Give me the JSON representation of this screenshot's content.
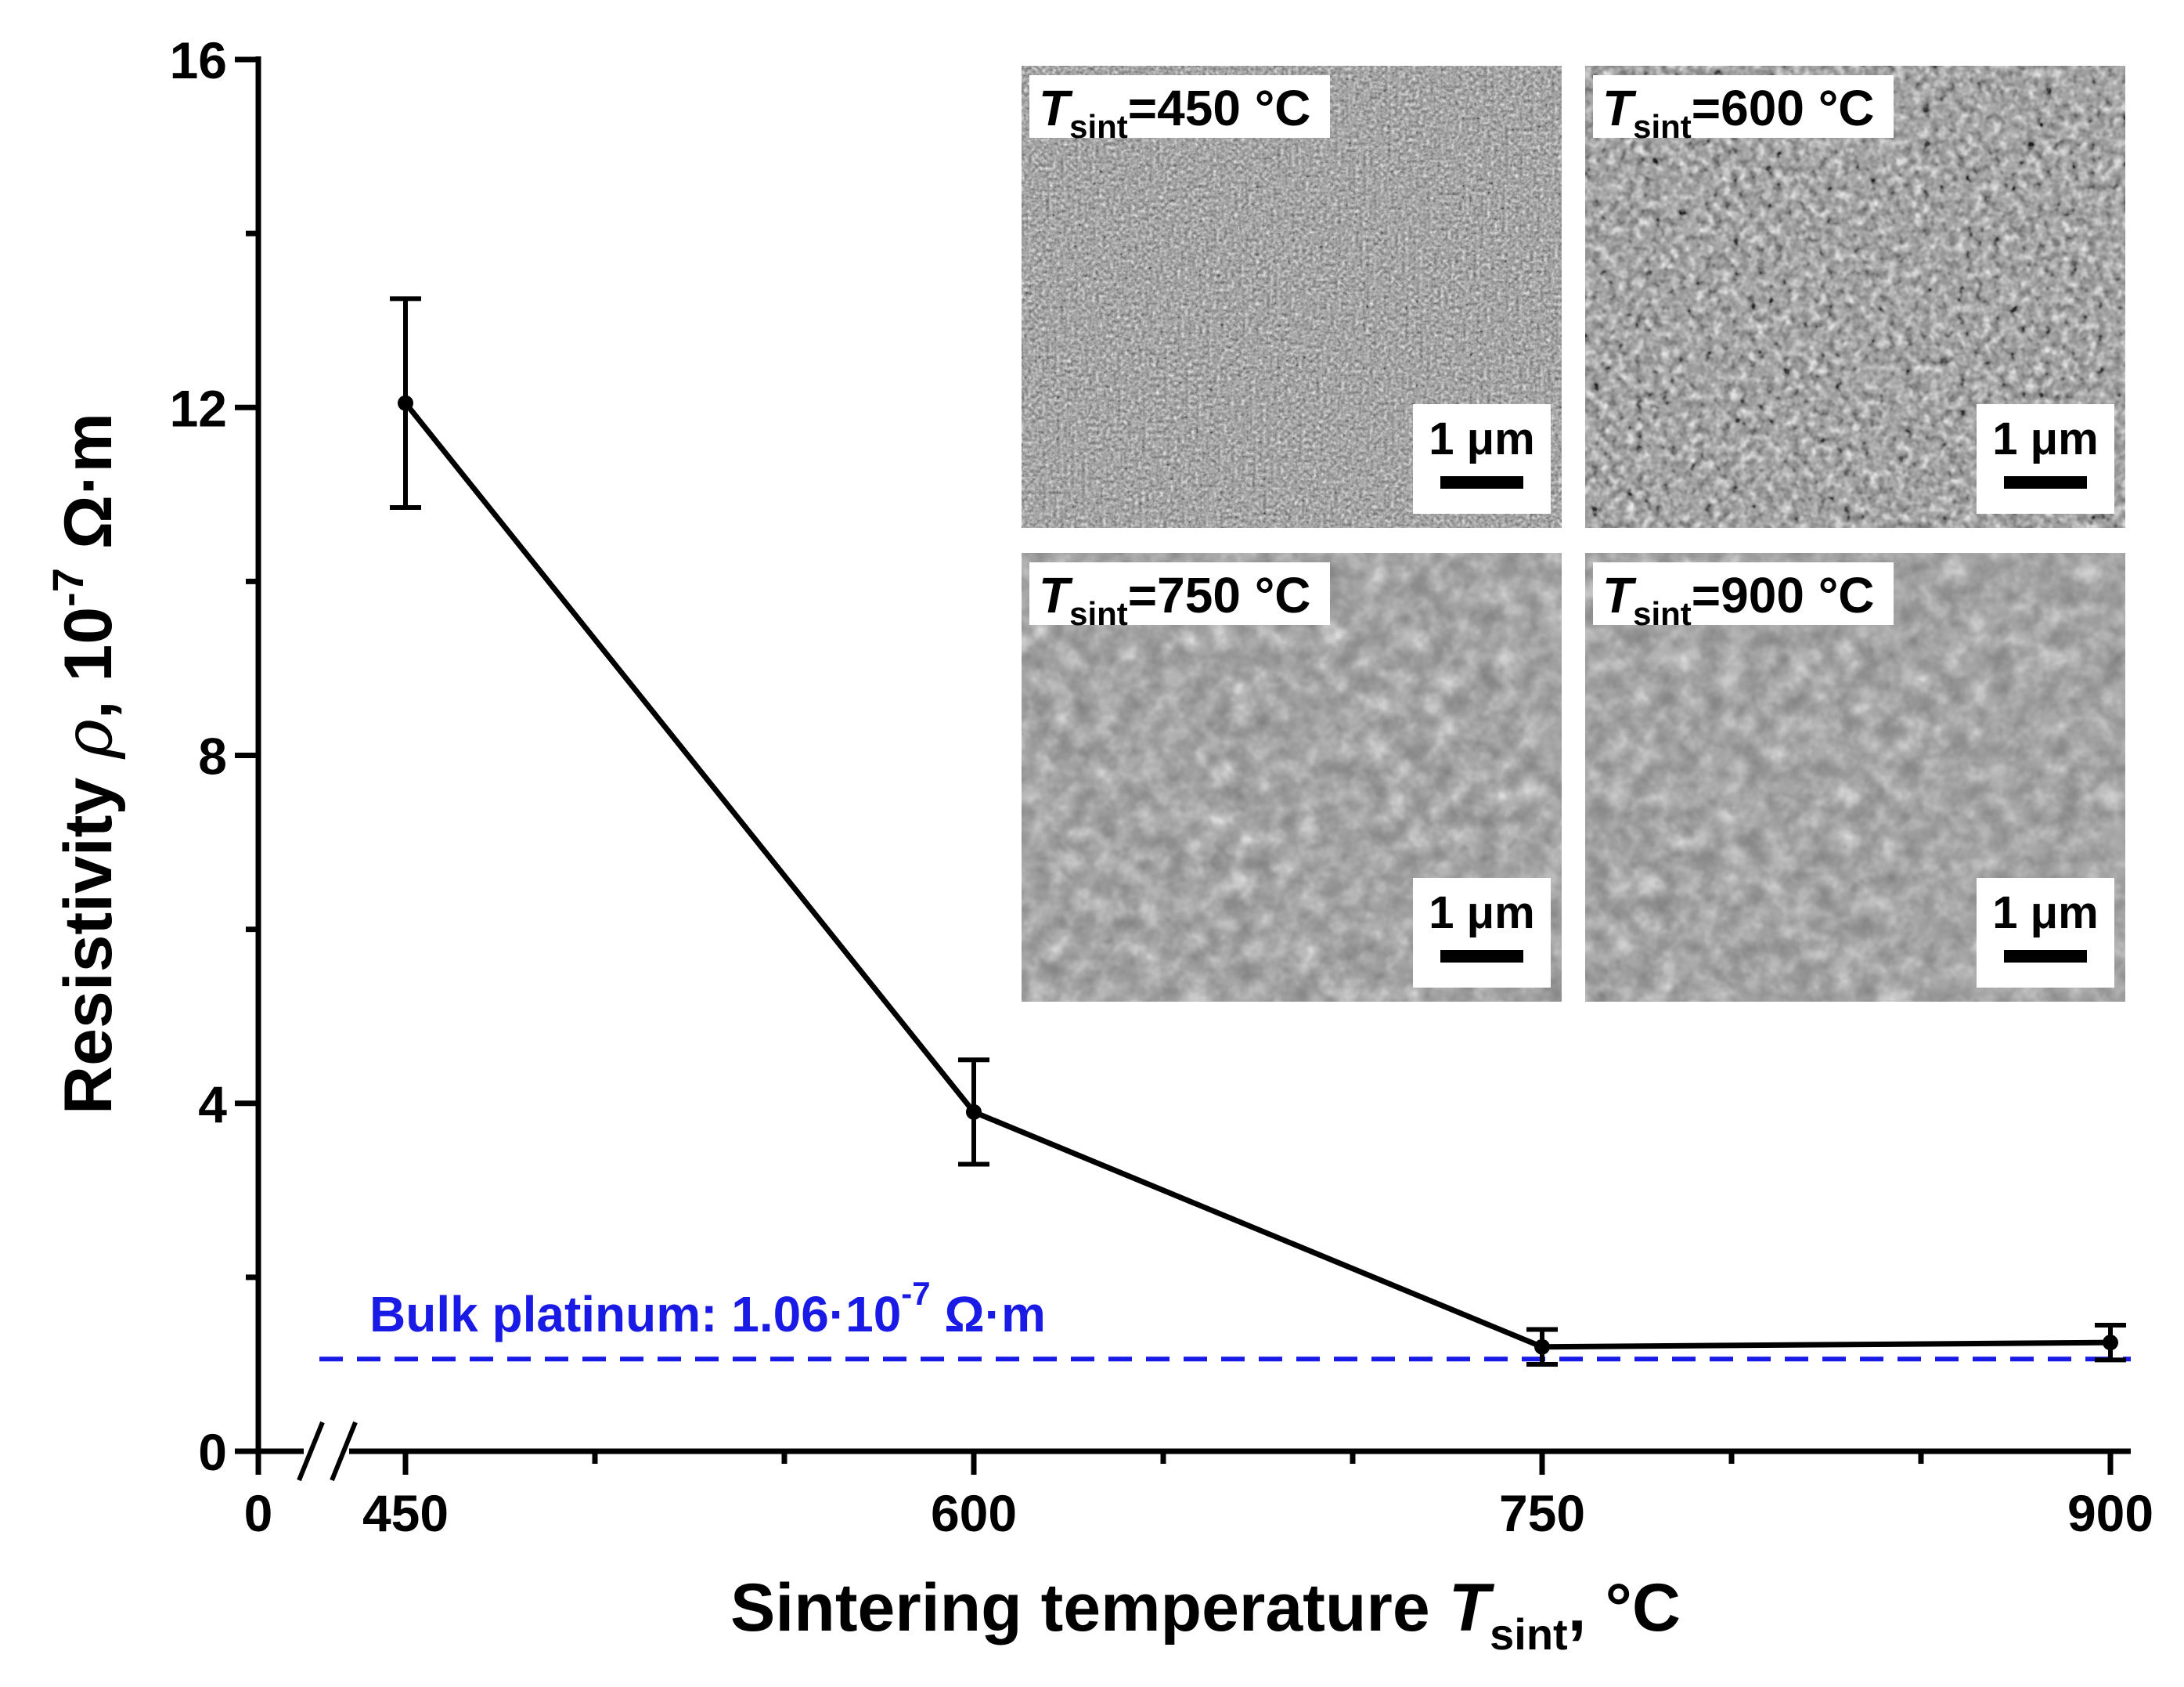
{
  "chart_data": {
    "type": "line",
    "title": "",
    "xlabel": {
      "main": "Sintering temperature ",
      "var": "T",
      "sub": "sint",
      "suffix": ", °C"
    },
    "ylabel": {
      "main": "Resistivity ",
      "var": "ρ",
      "mid": ", 10",
      "sup": "-7",
      "unit": " Ω·m"
    },
    "x": [
      450,
      600,
      750,
      900
    ],
    "y": [
      12.05,
      3.9,
      1.2,
      1.25
    ],
    "yerr": [
      1.2,
      0.6,
      0.2,
      0.2
    ],
    "xlim": [
      400,
      910
    ],
    "ylim": [
      0,
      16
    ],
    "x_ticks": [
      0,
      450,
      600,
      750,
      900
    ],
    "x_tick_labels": [
      "0",
      "450",
      "600",
      "750",
      "900"
    ],
    "y_ticks": [
      0,
      4,
      8,
      12,
      16
    ],
    "y_tick_labels": [
      "0",
      "4",
      "8",
      "12",
      "16"
    ],
    "axis_break": true,
    "reference_line": {
      "value": 1.06,
      "label_main": "Bulk platinum: 1.06·10",
      "label_sup": "-7",
      "label_unit": " Ω·m",
      "color": "#1a1ae6"
    },
    "insets": [
      {
        "name": "sem-450",
        "var": "T",
        "sub": "sint",
        "value": "=450 °C",
        "scale": "1 μm",
        "texture": "fine-porous"
      },
      {
        "name": "sem-600",
        "var": "T",
        "sub": "sint",
        "value": "=600 °C",
        "scale": "1 μm",
        "texture": "coarse-porous"
      },
      {
        "name": "sem-750",
        "var": "T",
        "sub": "sint",
        "value": "=750 °C",
        "scale": "1 μm",
        "texture": "dense-grains"
      },
      {
        "name": "sem-900",
        "var": "T",
        "sub": "sint",
        "value": "=900 °C",
        "scale": "1 μm",
        "texture": "dense-grains"
      }
    ],
    "line_color": "#000000",
    "grid": false,
    "legend": "none"
  }
}
